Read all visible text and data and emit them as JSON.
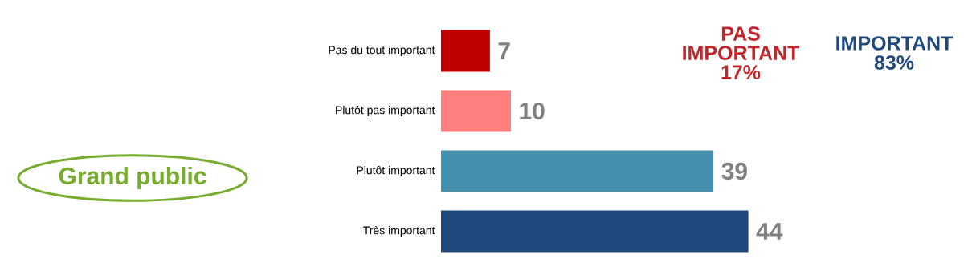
{
  "chart_data": {
    "type": "bar",
    "orientation": "horizontal",
    "categories": [
      "Pas du tout important",
      "Plutôt pas important",
      "Plutôt important",
      "Très important"
    ],
    "values": [
      7,
      10,
      39,
      44
    ],
    "colors": [
      "#c00000",
      "#ff7f7f",
      "#4391ae",
      "#1f497d"
    ],
    "data_labels": true,
    "annotations": [
      "Grand public",
      "PAS IMPORTANT 17%",
      "IMPORTANT 83%"
    ]
  }
}
